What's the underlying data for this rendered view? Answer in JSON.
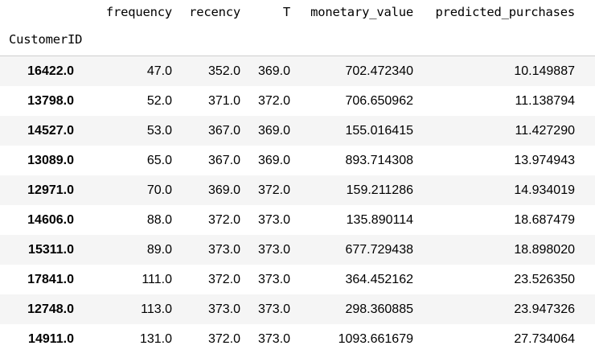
{
  "table": {
    "index_name": "CustomerID",
    "columns": [
      "frequency",
      "recency",
      "T",
      "monetary_value",
      "predicted_purchases"
    ],
    "rows": [
      {
        "id": "16422.0",
        "frequency": "47.0",
        "recency": "352.0",
        "T": "369.0",
        "monetary_value": "702.472340",
        "predicted_purchases": "10.149887"
      },
      {
        "id": "13798.0",
        "frequency": "52.0",
        "recency": "371.0",
        "T": "372.0",
        "monetary_value": "706.650962",
        "predicted_purchases": "11.138794"
      },
      {
        "id": "14527.0",
        "frequency": "53.0",
        "recency": "367.0",
        "T": "369.0",
        "monetary_value": "155.016415",
        "predicted_purchases": "11.427290"
      },
      {
        "id": "13089.0",
        "frequency": "65.0",
        "recency": "367.0",
        "T": "369.0",
        "monetary_value": "893.714308",
        "predicted_purchases": "13.974943"
      },
      {
        "id": "12971.0",
        "frequency": "70.0",
        "recency": "369.0",
        "T": "372.0",
        "monetary_value": "159.211286",
        "predicted_purchases": "14.934019"
      },
      {
        "id": "14606.0",
        "frequency": "88.0",
        "recency": "372.0",
        "T": "373.0",
        "monetary_value": "135.890114",
        "predicted_purchases": "18.687479"
      },
      {
        "id": "15311.0",
        "frequency": "89.0",
        "recency": "373.0",
        "T": "373.0",
        "monetary_value": "677.729438",
        "predicted_purchases": "18.898020"
      },
      {
        "id": "17841.0",
        "frequency": "111.0",
        "recency": "372.0",
        "T": "373.0",
        "monetary_value": "364.452162",
        "predicted_purchases": "23.526350"
      },
      {
        "id": "12748.0",
        "frequency": "113.0",
        "recency": "373.0",
        "T": "373.0",
        "monetary_value": "298.360885",
        "predicted_purchases": "23.947326"
      },
      {
        "id": "14911.0",
        "frequency": "131.0",
        "recency": "372.0",
        "T": "373.0",
        "monetary_value": "1093.661679",
        "predicted_purchases": "27.734064"
      }
    ]
  }
}
